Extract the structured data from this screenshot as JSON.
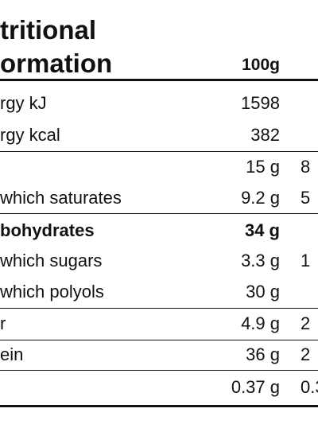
{
  "header": {
    "title_lines": [
      "tritional",
      "ormation"
    ],
    "column": "100g"
  },
  "rows": [
    {
      "label": "rgy kJ",
      "per100g": "1598"
    },
    {
      "label": "rgy kcal",
      "per100g": "382"
    },
    {
      "label": "",
      "per100g": "15 g",
      "other": "8"
    },
    {
      "label": "which saturates",
      "per100g": "9.2 g",
      "other": "5"
    },
    {
      "label": "bohydrates",
      "per100g": "34 g",
      "bold": true
    },
    {
      "label": "which sugars",
      "per100g": "3.3 g",
      "other": "1"
    },
    {
      "label": "which polyols",
      "per100g": "30 g"
    },
    {
      "label": "r",
      "per100g": "4.9 g",
      "other": "2"
    },
    {
      "label": "ein",
      "per100g": "36 g",
      "other": "2"
    },
    {
      "label": "",
      "per100g": "0.37 g",
      "other": "0.3"
    }
  ]
}
